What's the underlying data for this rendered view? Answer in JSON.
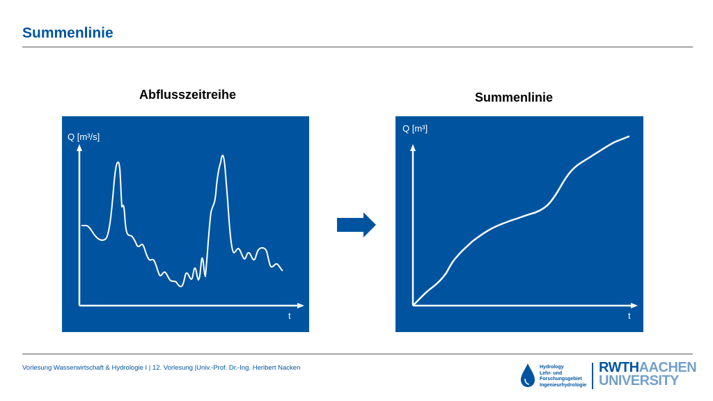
{
  "title": "Summenlinie",
  "left_panel": {
    "heading": "Abflusszeitreihe",
    "y_label": "Q [m³/s]",
    "x_label": "t"
  },
  "right_panel": {
    "heading": "Summenlinie",
    "y_label": "Q   [m³]",
    "x_label": "t"
  },
  "footer": "Vorlesung Wasserwirtschaft & Hydrologie I | 12. Vorlesung |Univ.-Prof. Dr.-Ing. Heribert Nacken",
  "logo": {
    "hydro_lines": [
      "Hydrology",
      "Lehr- und",
      "Forschungsgebiet",
      "Ingenieurhydrologie"
    ],
    "rwth_line1_bold": "RWTH",
    "rwth_line1_light": "AACHEN",
    "rwth_line2": "UNIVERSITY"
  },
  "colors": {
    "brand": "#00549f",
    "curve": "#ffffff"
  }
}
